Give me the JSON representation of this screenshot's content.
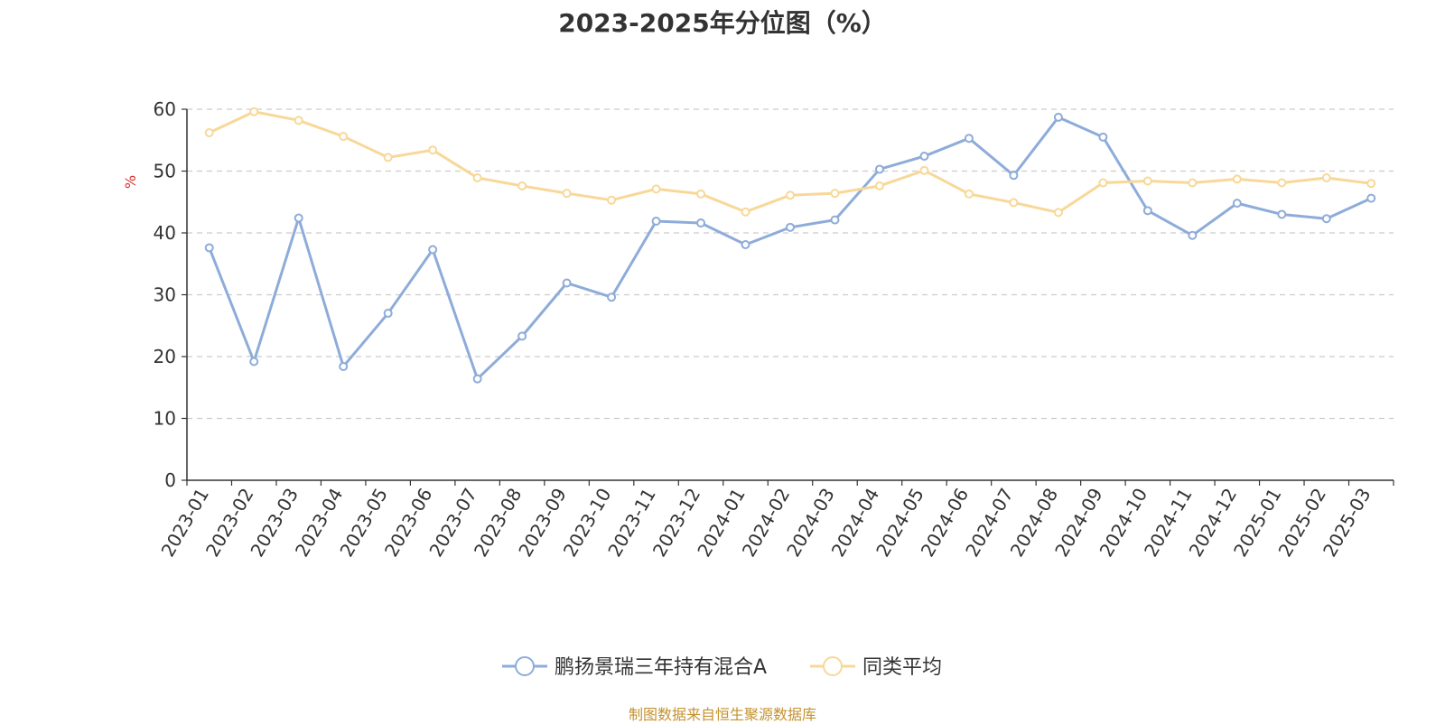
{
  "title": "2023-2025年分位图（%）",
  "source": "制图数据来自恒生聚源数据库",
  "chart_data": {
    "type": "line",
    "title": "2023-2025年分位图（%）",
    "ylabel": "%",
    "xlabel": "",
    "ylim": [
      0,
      60
    ],
    "yticks": [
      0,
      10,
      20,
      30,
      40,
      50,
      60
    ],
    "grid": true,
    "legend_position": "bottom",
    "categories": [
      "2023-01",
      "2023-02",
      "2023-03",
      "2023-04",
      "2023-05",
      "2023-06",
      "2023-07",
      "2023-08",
      "2023-09",
      "2023-10",
      "2023-11",
      "2023-12",
      "2024-01",
      "2024-02",
      "2024-03",
      "2024-04",
      "2024-05",
      "2024-06",
      "2024-07",
      "2024-08",
      "2024-09",
      "2024-10",
      "2024-11",
      "2024-12",
      "2025-01",
      "2025-02",
      "2025-03"
    ],
    "series": [
      {
        "name": "鹏扬景瑞三年持有混合A",
        "color": "#8eacd9",
        "values": [
          37.6,
          19.2,
          42.4,
          18.4,
          27.0,
          37.3,
          16.4,
          23.3,
          31.9,
          29.6,
          41.9,
          41.6,
          38.1,
          40.9,
          42.1,
          50.3,
          52.4,
          55.3,
          49.3,
          58.7,
          55.5,
          43.6,
          39.6,
          44.8,
          43.0,
          42.3,
          45.6
        ]
      },
      {
        "name": "同类平均",
        "color": "#f8d898",
        "values": [
          56.2,
          59.6,
          58.2,
          55.6,
          52.2,
          53.4,
          48.9,
          47.6,
          46.4,
          45.3,
          47.1,
          46.3,
          43.4,
          46.1,
          46.4,
          47.6,
          50.1,
          46.3,
          44.9,
          43.3,
          48.1,
          48.4,
          48.1,
          48.7,
          48.1,
          48.9,
          48.0
        ]
      }
    ]
  }
}
